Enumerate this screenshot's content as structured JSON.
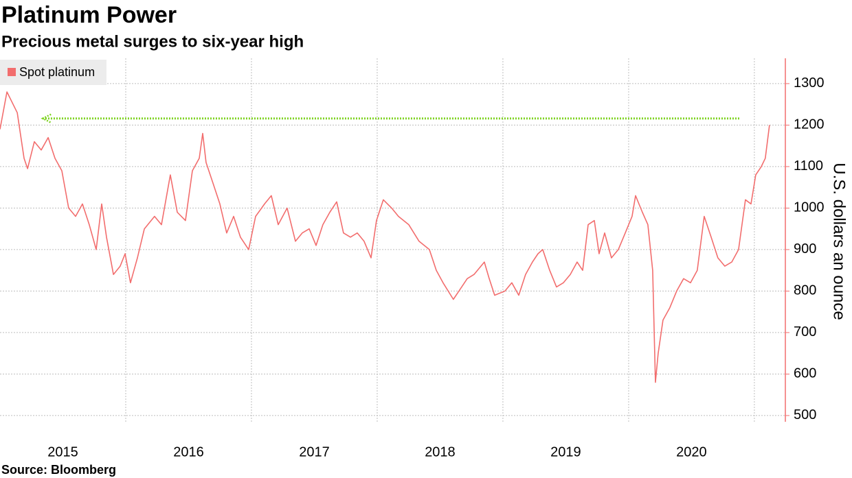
{
  "chart_data": {
    "type": "line",
    "title": "Platinum Power",
    "subtitle": "Precious metal surges to six-year high",
    "source": "Source: Bloomberg",
    "y_label": "U.S. dollars an ounce",
    "x": [
      2015.0,
      2015.055,
      2015.137,
      2015.191,
      2015.219,
      2015.273,
      2015.328,
      2015.383,
      2015.437,
      2015.492,
      2015.546,
      2015.601,
      2015.656,
      2015.71,
      2015.765,
      2015.809,
      2015.847,
      2015.902,
      2015.956,
      2015.995,
      2016.038,
      2016.093,
      2016.148,
      2016.229,
      2016.284,
      2016.355,
      2016.41,
      2016.475,
      2016.53,
      2016.585,
      2016.612,
      2016.639,
      2016.694,
      2016.749,
      2016.803,
      2016.858,
      2016.912,
      2016.978,
      2017.033,
      2017.104,
      2017.158,
      2017.213,
      2017.284,
      2017.35,
      2017.404,
      2017.459,
      2017.514,
      2017.568,
      2017.623,
      2017.678,
      2017.732,
      2017.787,
      2017.842,
      2017.896,
      2017.951,
      2017.994,
      2018.049,
      2018.115,
      2018.169,
      2018.251,
      2018.333,
      2018.415,
      2018.47,
      2018.524,
      2018.606,
      2018.65,
      2018.716,
      2018.77,
      2018.852,
      2018.891,
      2018.934,
      2019.016,
      2019.071,
      2019.126,
      2019.18,
      2019.235,
      2019.279,
      2019.317,
      2019.372,
      2019.426,
      2019.481,
      2019.536,
      2019.59,
      2019.634,
      2019.678,
      2019.727,
      2019.765,
      2019.809,
      2019.863,
      2019.918,
      2019.973,
      2020.027,
      2020.055,
      2020.109,
      2020.153,
      2020.191,
      2020.213,
      2020.235,
      2020.273,
      2020.328,
      2020.382,
      2020.437,
      2020.492,
      2020.546,
      2020.601,
      2020.656,
      2020.71,
      2020.765,
      2020.82,
      2020.874,
      2020.929,
      2020.973,
      2021.011,
      2021.055,
      2021.087,
      2021.12
    ],
    "series": [
      {
        "name": "Spot platinum",
        "color": "#f26d6d",
        "values": [
          1190,
          1280,
          1230,
          1120,
          1095,
          1160,
          1140,
          1170,
          1120,
          1090,
          1000,
          980,
          1010,
          960,
          900,
          1010,
          930,
          840,
          860,
          890,
          820,
          880,
          950,
          980,
          960,
          1080,
          990,
          970,
          1090,
          1120,
          1180,
          1110,
          1060,
          1010,
          940,
          980,
          930,
          900,
          980,
          1010,
          1030,
          960,
          1000,
          920,
          940,
          950,
          910,
          960,
          990,
          1015,
          940,
          930,
          940,
          920,
          880,
          970,
          1020,
          1000,
          980,
          960,
          920,
          900,
          850,
          820,
          780,
          800,
          830,
          840,
          870,
          830,
          790,
          800,
          820,
          790,
          840,
          870,
          890,
          900,
          850,
          810,
          820,
          840,
          870,
          850,
          960,
          970,
          890,
          940,
          880,
          900,
          940,
          980,
          1030,
          990,
          960,
          850,
          580,
          650,
          730,
          760,
          800,
          830,
          820,
          850,
          980,
          930,
          880,
          860,
          870,
          900,
          1020,
          1010,
          1080,
          1100,
          1120,
          1200
        ]
      }
    ],
    "xlim": [
      2015.0,
      2021.23
    ],
    "xticks": [
      {
        "value": 2015.5,
        "label": "2015"
      },
      {
        "value": 2016.5,
        "label": "2016"
      },
      {
        "value": 2017.5,
        "label": "2017"
      },
      {
        "value": 2018.5,
        "label": "2018"
      },
      {
        "value": 2019.5,
        "label": "2019"
      },
      {
        "value": 2020.5,
        "label": "2020"
      }
    ],
    "xgrid": [
      2016,
      2017,
      2018,
      2019,
      2020,
      2021
    ],
    "ylim": [
      485,
      1361
    ],
    "yticks": [
      500,
      600,
      700,
      800,
      900,
      1000,
      1100,
      1200,
      1300
    ],
    "grid": true,
    "legend": "top-left",
    "annotation_line": {
      "y": 1216,
      "x": [
        2020.88,
        2015.34
      ],
      "color": "#7ed321"
    }
  }
}
